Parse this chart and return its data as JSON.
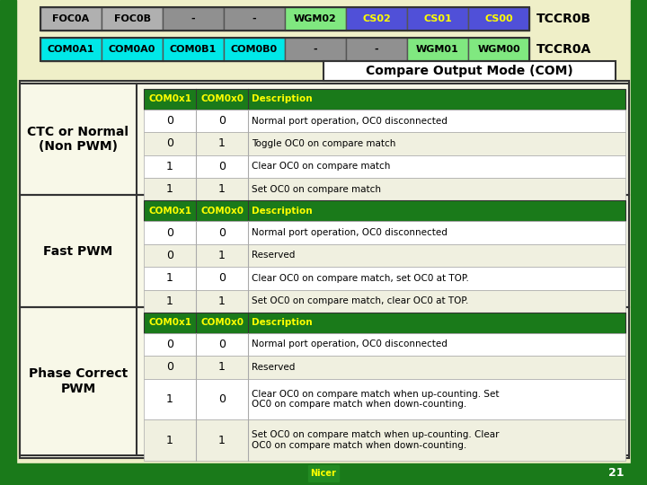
{
  "bg_color": "#efefc8",
  "title": "Compare Output Mode (COM)",
  "header_bg": "#1a7a1a",
  "header_fg": "#ffff00",
  "reg_row1": {
    "cells": [
      "FOC0A",
      "FOC0B",
      "-",
      "-",
      "WGM02",
      "CS02",
      "CS01",
      "CS00"
    ],
    "colors": [
      "#b0b0b0",
      "#b0b0b0",
      "#909090",
      "#909090",
      "#80e880",
      "#5050d8",
      "#5050d8",
      "#5050d8"
    ],
    "text_colors": [
      "#000000",
      "#000000",
      "#000000",
      "#000000",
      "#000000",
      "#ffff00",
      "#ffff00",
      "#ffff00"
    ],
    "label": "TCCR0B"
  },
  "reg_row2": {
    "cells": [
      "COM0A1",
      "COM0A0",
      "COM0B1",
      "COM0B0",
      "-",
      "-",
      "WGM01",
      "WGM00"
    ],
    "colors": [
      "#00e8e8",
      "#00e8e8",
      "#00e8e8",
      "#00e8e8",
      "#909090",
      "#909090",
      "#80e880",
      "#80e880"
    ],
    "text_colors": [
      "#000000",
      "#000000",
      "#000000",
      "#000000",
      "#000000",
      "#000000",
      "#000000",
      "#000000"
    ],
    "label": "TCCR0A"
  },
  "sections": [
    {
      "label": "CTC or Normal\n(Non PWM)",
      "rows": [
        [
          "0",
          "0",
          "Normal port operation, OC0 disconnected"
        ],
        [
          "0",
          "1",
          "Toggle OC0 on compare match"
        ],
        [
          "1",
          "0",
          "Clear OC0 on compare match"
        ],
        [
          "1",
          "1",
          "Set OC0 on compare match"
        ]
      ]
    },
    {
      "label": "Fast PWM",
      "rows": [
        [
          "0",
          "0",
          "Normal port operation, OC0 disconnected"
        ],
        [
          "0",
          "1",
          "Reserved"
        ],
        [
          "1",
          "0",
          "Clear OC0 on compare match, set OC0 at TOP."
        ],
        [
          "1",
          "1",
          "Set OC0 on compare match, clear OC0 at TOP."
        ]
      ]
    },
    {
      "label": "Phase Correct\nPWM",
      "rows": [
        [
          "0",
          "0",
          "Normal port operation, OC0 disconnected"
        ],
        [
          "0",
          "1",
          "Reserved"
        ],
        [
          "1",
          "0",
          "Clear OC0 on compare match when up-counting. Set\nOC0 on compare match when down-counting."
        ],
        [
          "1",
          "1",
          "Set OC0 on compare match when up-counting. Clear\nOC0 on compare match when down-counting."
        ]
      ]
    }
  ],
  "bottom_bar_color": "#1a7a1a",
  "side_bar_color": "#1a7a1a",
  "slide_num": "21"
}
